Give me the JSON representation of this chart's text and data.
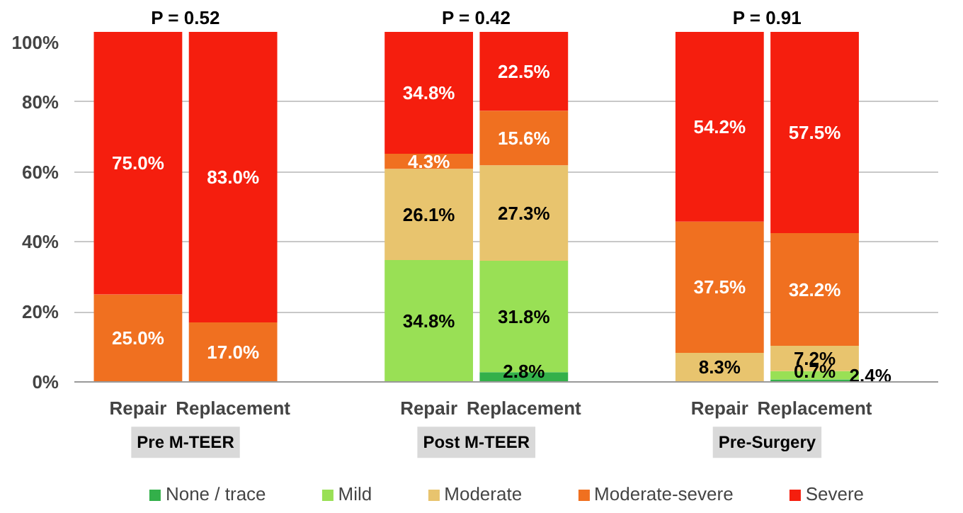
{
  "chart_data": {
    "type": "bar",
    "stacked": true,
    "categories": [
      "Repair",
      "Replacement",
      "Repair",
      "Replacement",
      "Repair",
      "Replacement"
    ],
    "series": [
      {
        "name": "None / trace",
        "color": "#33b04a",
        "values": [
          0,
          0,
          0,
          2.8,
          0,
          0.7
        ],
        "value_labels": [
          null,
          null,
          null,
          "2.8%",
          null,
          "0.7%"
        ]
      },
      {
        "name": "Mild",
        "color": "#99e055",
        "values": [
          0,
          0,
          34.8,
          31.8,
          0,
          2.4
        ],
        "value_labels": [
          null,
          null,
          "34.8%",
          "31.8%",
          null,
          "2.4%"
        ]
      },
      {
        "name": "Moderate",
        "color": "#e8c46e",
        "values": [
          0,
          0,
          26.1,
          27.3,
          8.3,
          7.2
        ],
        "value_labels": [
          null,
          null,
          "26.1%",
          "27.3%",
          "8.3%",
          "7.2%"
        ]
      },
      {
        "name": "Moderate-severe",
        "color": "#f07020",
        "values": [
          25.0,
          17.0,
          4.3,
          15.6,
          37.5,
          32.2
        ],
        "value_labels": [
          "25.0%",
          "17.0%",
          "4.3%",
          "15.6%",
          "37.5%",
          "32.2%"
        ]
      },
      {
        "name": "Severe",
        "color": "#f51e0e",
        "values": [
          75.0,
          83.0,
          34.8,
          22.5,
          54.2,
          57.5
        ],
        "value_labels": [
          "75.0%",
          "83.0%",
          "34.8%",
          "22.5%",
          "54.2%",
          "57.5%"
        ]
      }
    ],
    "ylim": [
      0,
      100
    ],
    "yticks": [
      {
        "value": 0,
        "label": "0%"
      },
      {
        "value": 20,
        "label": "20%"
      },
      {
        "value": 40,
        "label": "40%"
      },
      {
        "value": 60,
        "label": "60%"
      },
      {
        "value": 80,
        "label": "80%"
      },
      {
        "value": 100,
        "label": "100%"
      }
    ],
    "grid": "y",
    "legend": "bottom",
    "annotations": [
      "P = 0.52",
      "P = 0.42",
      "P = 0.91",
      "Pre M-TEER",
      "Post M-TEER",
      "Pre-Surgery"
    ]
  }
}
